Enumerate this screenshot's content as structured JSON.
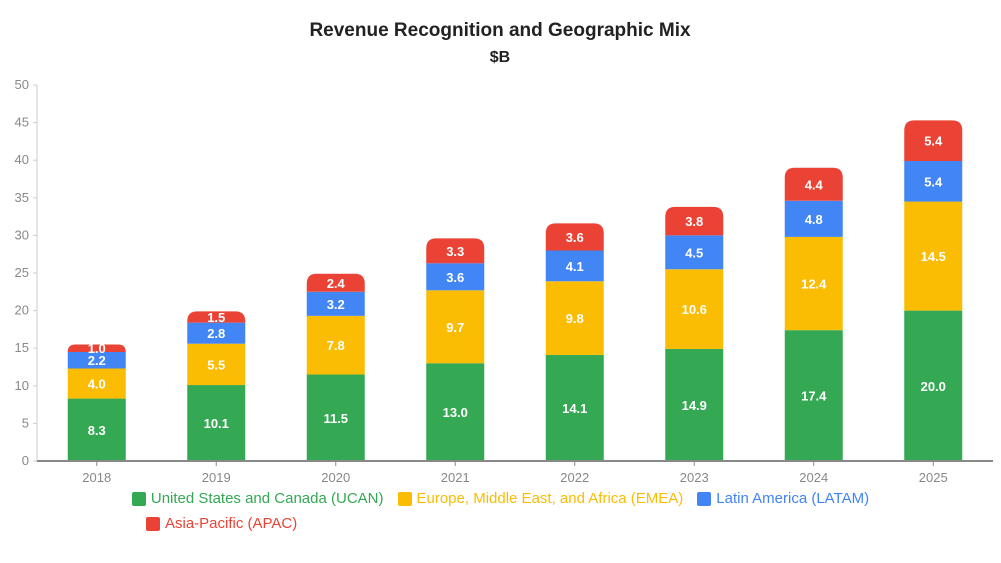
{
  "chart_data": {
    "type": "bar",
    "stacked": true,
    "title": "Revenue Recognition and Geographic Mix",
    "subtitle": "$B",
    "xlabel": "",
    "ylabel": "",
    "ylim": [
      0,
      50
    ],
    "yticks": [
      0,
      5,
      10,
      15,
      20,
      25,
      30,
      35,
      40,
      45,
      50
    ],
    "categories": [
      "2018",
      "2019",
      "2020",
      "2021",
      "2022",
      "2023",
      "2024",
      "2025"
    ],
    "legend_position": "bottom",
    "series": [
      {
        "name": "United States and Canada (UCAN)",
        "color": "#34A853",
        "values": [
          8.3,
          10.1,
          11.5,
          13.0,
          14.1,
          14.9,
          17.4,
          20.0
        ]
      },
      {
        "name": "Europe, Middle East, and Africa (EMEA)",
        "color": "#FBBC04",
        "values": [
          4.0,
          5.5,
          7.8,
          9.7,
          9.8,
          10.6,
          12.4,
          14.5
        ]
      },
      {
        "name": "Latin America (LATAM)",
        "color": "#4285F4",
        "values": [
          2.2,
          2.8,
          3.2,
          3.6,
          4.1,
          4.5,
          4.8,
          5.4
        ]
      },
      {
        "name": "Asia-Pacific (APAC)",
        "color": "#EA4335",
        "values": [
          1.0,
          1.5,
          2.4,
          3.3,
          3.6,
          3.8,
          4.4,
          5.4
        ]
      }
    ]
  }
}
